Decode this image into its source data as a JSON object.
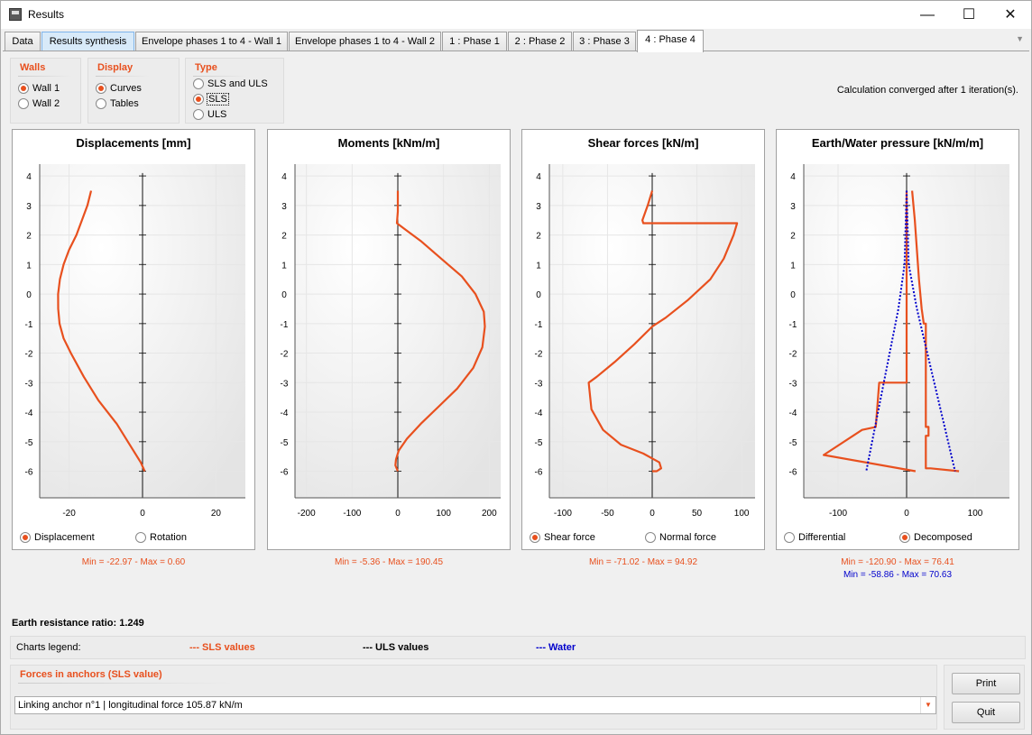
{
  "window": {
    "title": "Results",
    "minimize": "—",
    "maximize": "☐",
    "close": "✕"
  },
  "tabs": [
    {
      "label": "Data"
    },
    {
      "label": "Results synthesis"
    },
    {
      "label": "Envelope phases 1 to 4 - Wall 1"
    },
    {
      "label": "Envelope phases 1 to 4 - Wall 2"
    },
    {
      "label": "1 : Phase 1"
    },
    {
      "label": "2 : Phase 2"
    },
    {
      "label": "3 : Phase 3"
    },
    {
      "label": "4 : Phase 4"
    }
  ],
  "active_tab": "4 : Phase 4",
  "options": {
    "walls": {
      "title": "Walls",
      "items": [
        "Wall 1",
        "Wall 2"
      ],
      "selected": "Wall 1"
    },
    "display": {
      "title": "Display",
      "items": [
        "Curves",
        "Tables"
      ],
      "selected": "Curves"
    },
    "type": {
      "title": "Type",
      "items": [
        "SLS and ULS",
        "SLS",
        "ULS"
      ],
      "selected": "SLS"
    }
  },
  "status": "Calculation converged after 1 iteration(s).",
  "colors": {
    "sls": "#e8501e",
    "uls": "#000000",
    "water": "#0000cc"
  },
  "charts": [
    {
      "title": "Displacements [mm]",
      "radios": [
        "Displacement",
        "Rotation"
      ],
      "selected": "Displacement",
      "minmax": "Min = -22.97  -  Max = 0.60",
      "minmax2": ""
    },
    {
      "title": "Moments [kNm/m]",
      "radios": [],
      "selected": "",
      "minmax": "Min = -5.36  -  Max = 190.45",
      "minmax2": ""
    },
    {
      "title": "Shear forces [kN/m]",
      "radios": [
        "Shear force",
        "Normal force"
      ],
      "selected": "Shear force",
      "minmax": "Min = -71.02  -  Max = 94.92",
      "minmax2": ""
    },
    {
      "title": "Earth/Water pressure [kN/m/m]",
      "radios": [
        "Differential",
        "Decomposed"
      ],
      "selected": "Decomposed",
      "minmax": "Min = -120.90  -  Max = 76.41",
      "minmax2": "Min = -58.86  -  Max = 70.63"
    }
  ],
  "chart_data": [
    {
      "type": "line",
      "title": "Displacements [mm]",
      "xlim": [
        -28,
        28
      ],
      "ylim": [
        -6.9,
        4.4
      ],
      "xticks": [
        -20,
        0,
        20
      ],
      "yticks": [
        4,
        3,
        2,
        1,
        0,
        -1,
        -2,
        -3,
        -4,
        -5,
        -6
      ],
      "series": [
        {
          "style": "sls",
          "x": [
            -14,
            -15,
            -16.5,
            -18,
            -20,
            -21.5,
            -22.5,
            -23,
            -22.97,
            -22.6,
            -21.5,
            -19.5,
            -16,
            -12,
            -7,
            -3,
            -0.5,
            0.6
          ],
          "y": [
            3.5,
            3.0,
            2.5,
            2.0,
            1.5,
            1.0,
            0.5,
            0.0,
            -0.5,
            -1.0,
            -1.5,
            -2.0,
            -2.8,
            -3.6,
            -4.4,
            -5.2,
            -5.7,
            -6.0
          ]
        }
      ]
    },
    {
      "type": "line",
      "title": "Moments [kNm/m]",
      "xlim": [
        -225,
        225
      ],
      "ylim": [
        -6.9,
        4.4
      ],
      "xticks": [
        -200,
        -100,
        0,
        100,
        200
      ],
      "yticks": [
        4,
        3,
        2,
        1,
        0,
        -1,
        -2,
        -3,
        -4,
        -5,
        -6
      ],
      "series": [
        {
          "style": "sls",
          "x": [
            0,
            0,
            -2,
            15,
            50,
            95,
            140,
            170,
            188,
            190.45,
            185,
            165,
            130,
            90,
            50,
            20,
            2,
            -4,
            -5.36,
            0
          ],
          "y": [
            3.5,
            2.8,
            2.4,
            2.2,
            1.8,
            1.2,
            0.6,
            0.0,
            -0.6,
            -1.1,
            -1.8,
            -2.5,
            -3.2,
            -3.8,
            -4.4,
            -4.9,
            -5.3,
            -5.6,
            -5.8,
            -6.0
          ]
        }
      ]
    },
    {
      "type": "line",
      "title": "Shear forces [kN/m]",
      "xlim": [
        -115,
        115
      ],
      "ylim": [
        -6.9,
        4.4
      ],
      "xticks": [
        -100,
        -50,
        0,
        50,
        100
      ],
      "yticks": [
        4,
        3,
        2,
        1,
        0,
        -1,
        -2,
        -3,
        -4,
        -5,
        -6
      ],
      "series": [
        {
          "style": "sls",
          "x": [
            0,
            -5,
            -11,
            -10,
            94.92,
            91,
            80,
            65,
            40,
            15,
            0,
            -20,
            -42,
            -62,
            -71.02,
            -68,
            -55,
            -35,
            -10,
            8,
            10,
            5,
            0
          ],
          "y": [
            3.5,
            3.0,
            2.5,
            2.4,
            2.4,
            2.0,
            1.2,
            0.5,
            -0.2,
            -0.8,
            -1.1,
            -1.7,
            -2.3,
            -2.8,
            -3.0,
            -3.9,
            -4.6,
            -5.1,
            -5.4,
            -5.7,
            -5.9,
            -6.0,
            -6.0
          ]
        }
      ]
    },
    {
      "type": "line",
      "title": "Earth/Water pressure [kN/m/m]",
      "xlim": [
        -150,
        150
      ],
      "ylim": [
        -6.9,
        4.4
      ],
      "xticks": [
        -100,
        0,
        100
      ],
      "yticks": [
        4,
        3,
        2,
        1,
        0,
        -1,
        -2,
        -3,
        -4,
        -5,
        -6
      ],
      "series": [
        {
          "style": "sls",
          "x": [
            0,
            0,
            0,
            0,
            0,
            0,
            -40,
            -45,
            -65,
            -120.9,
            13
          ],
          "y": [
            3.5,
            1.0,
            -0.5,
            -1.5,
            -2.5,
            -3.0,
            -3.0,
            -4.5,
            -4.6,
            -5.45,
            -6.0
          ]
        },
        {
          "style": "sls",
          "x": [
            8,
            12,
            15,
            18,
            22,
            25,
            28,
            28,
            32,
            32,
            28,
            28,
            35,
            76.41
          ],
          "y": [
            3.5,
            2.5,
            1.5,
            0.5,
            -0.5,
            -1.0,
            -1.0,
            -4.5,
            -4.5,
            -4.8,
            -4.8,
            -5.9,
            -5.9,
            -6.0
          ]
        },
        {
          "style": "water",
          "x": [
            0,
            3,
            15,
            70.63
          ],
          "y": [
            3.5,
            1.0,
            -0.5,
            -6.0
          ]
        },
        {
          "style": "water",
          "x": [
            0,
            -3,
            -12,
            -58.86
          ],
          "y": [
            3.5,
            1.0,
            -0.5,
            -6.0
          ]
        }
      ]
    }
  ],
  "earth_ratio": "Earth resistance ratio: 1.249",
  "legend": {
    "label": "Charts legend:",
    "sls": "--- SLS values",
    "uls": "--- ULS values",
    "water": "--- Water"
  },
  "anchors": {
    "title": "Forces in anchors (SLS value)",
    "value": "Linking anchor n°1 | longitudinal force 105.87 kN/m"
  },
  "buttons": {
    "print": "Print",
    "quit": "Quit"
  }
}
